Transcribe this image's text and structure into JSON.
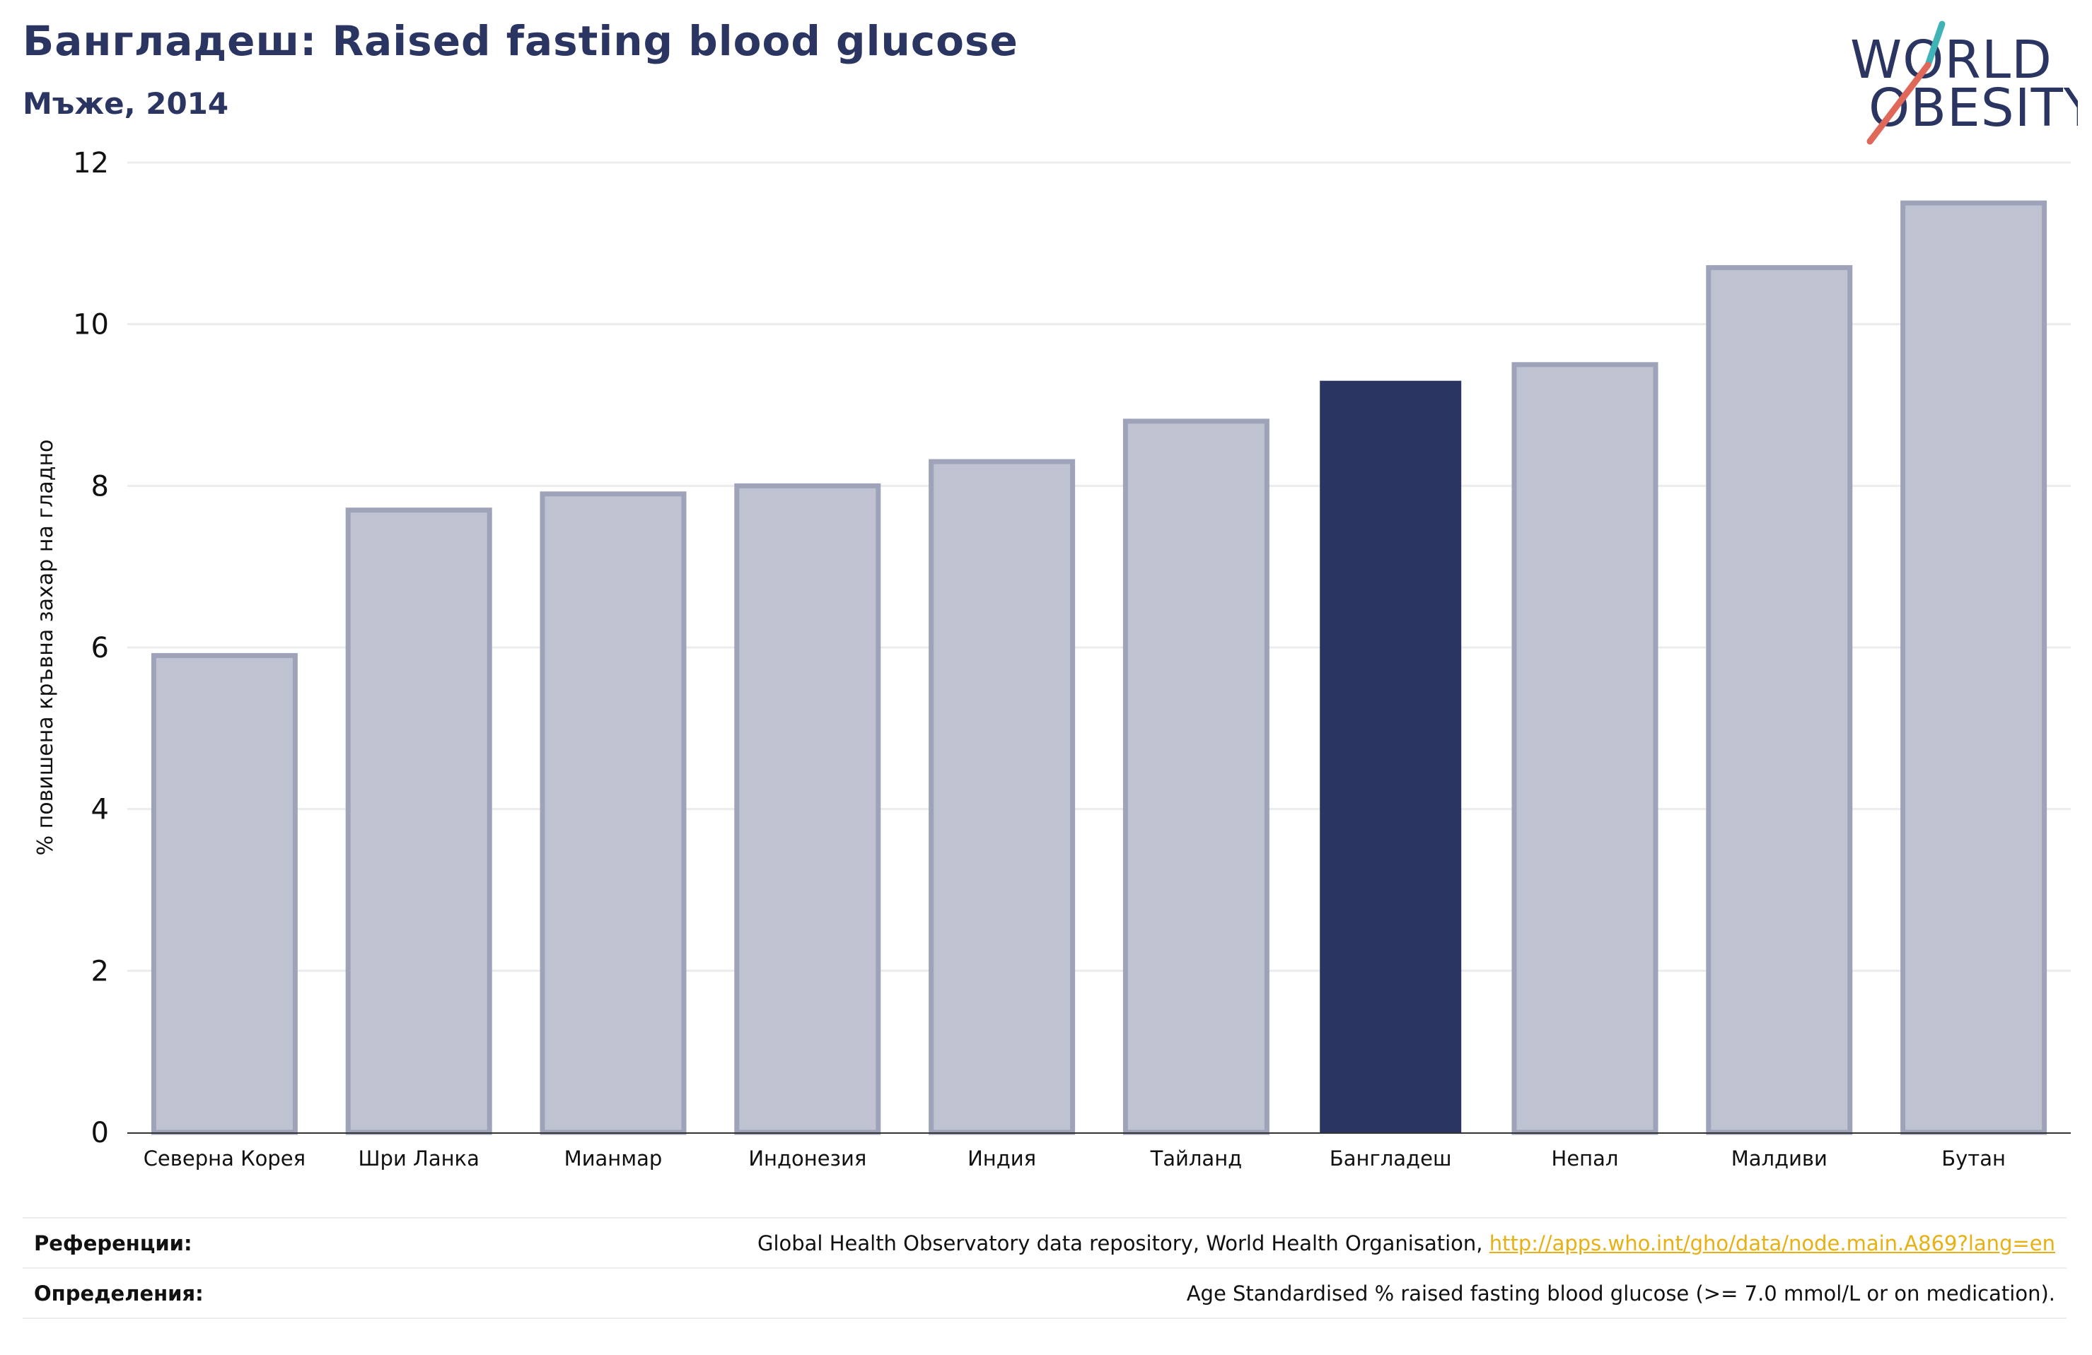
{
  "header": {
    "title": "Бангладеш: Raised fasting blood glucose",
    "subtitle": "Мъже, 2014"
  },
  "logo": {
    "line1": "WORLD",
    "line2": "OBESITY",
    "brand_color": "#2b3562",
    "accent_teal": "#3fb3b6",
    "accent_red": "#e0685a"
  },
  "chart_data": {
    "type": "bar",
    "ylabel": "% повишена кръвна захар на гладно",
    "ylim": [
      0,
      12
    ],
    "yticks": [
      "0",
      "2",
      "4",
      "6",
      "8",
      "10",
      "12"
    ],
    "grid": true,
    "categories": [
      "Северна Корея",
      "Шри Ланка",
      "Мианмар",
      "Индонезия",
      "Индия",
      "Тайланд",
      "Бангладеш",
      "Непал",
      "Малдиви",
      "Бутан"
    ],
    "values": [
      5.9,
      7.7,
      7.9,
      8.0,
      8.3,
      8.8,
      9.3,
      9.5,
      10.7,
      11.5
    ],
    "highlight": "Бангладеш",
    "colors": {
      "default": "#bfc2d0",
      "default_stroke": "#9ea3ba",
      "highlight": "#2b3562"
    }
  },
  "footer": {
    "references_label": "Референции:",
    "references_text": "Global Health Observatory data repository, World Health Organisation,",
    "references_link": "http://apps.who.int/gho/data/node.main.A869?lang=en",
    "definitions_label": "Определения:",
    "definitions_text": "Age Standardised % raised fasting blood glucose (>= 7.0 mmol/L or on medication)."
  }
}
